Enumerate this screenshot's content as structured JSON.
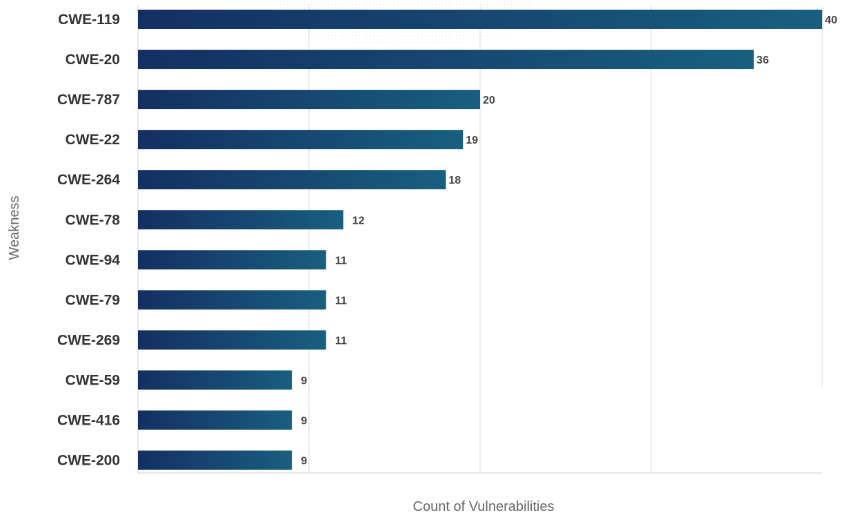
{
  "chart_data": {
    "type": "bar",
    "orientation": "horizontal",
    "title": "",
    "xlabel": "Count of Vulnerabilities",
    "ylabel": "Weakness",
    "categories": [
      "CWE-119",
      "CWE-20",
      "CWE-787",
      "CWE-22",
      "CWE-264",
      "CWE-78",
      "CWE-94",
      "CWE-79",
      "CWE-269",
      "CWE-59",
      "CWE-416",
      "CWE-200"
    ],
    "values": [
      40,
      36,
      20,
      19,
      18,
      12,
      11,
      11,
      11,
      9,
      9,
      9
    ],
    "xlim": [
      0,
      40
    ],
    "grid": true,
    "legend": "none",
    "colors": {
      "bar_start": "#142f63",
      "bar_end": "#185f80",
      "grid": "#d9d9d9"
    }
  }
}
